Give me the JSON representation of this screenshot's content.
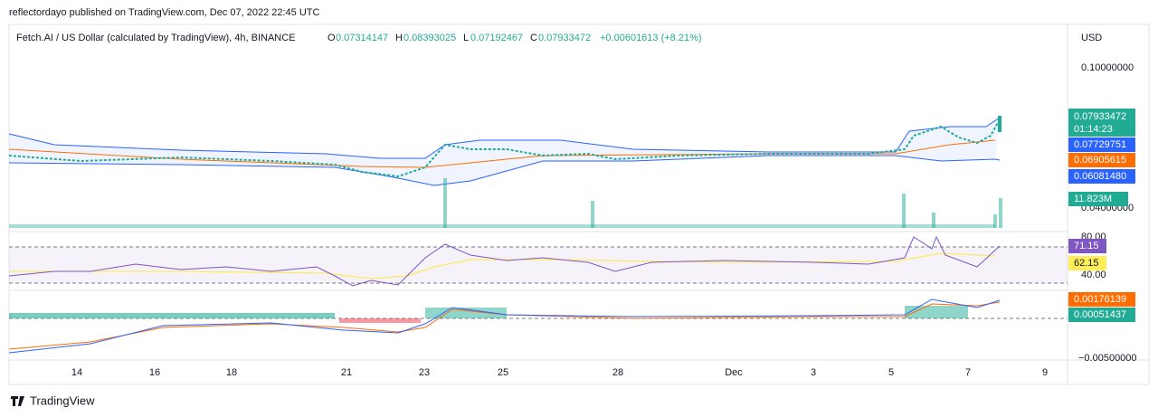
{
  "header": {
    "publisher": "reflectordayo published on TradingView.com, Dec 07, 2022 22:45 UTC"
  },
  "legend": {
    "symbol": "Fetch.AI / US Dollar (calculated by TradingView), 4h, BINANCE",
    "open_key": "O",
    "open": "0.07314147",
    "high_key": "H",
    "high": "0.08393025",
    "low_key": "L",
    "low": "0.07192467",
    "close_key": "C",
    "close": "0.07933472",
    "change": "+0.00601613 (+8.21%)"
  },
  "price_axis": {
    "currency": "USD",
    "ticks": [
      "0.10000000",
      "0.04000000"
    ],
    "last_price": "0.07933472",
    "countdown": "01:14:23",
    "bb_upper": "0.07729751",
    "bb_basis": "0.06905615",
    "bb_lower": "0.06081480",
    "volume": "11.823M"
  },
  "rsi_axis": {
    "ticks": [
      "80.00",
      "40.00"
    ],
    "rsi": "71.15",
    "rsi_ma": "62.15"
  },
  "macd_axis": {
    "macd": "0.00176139",
    "signal": "0.00051437",
    "tick": "−0.00500000"
  },
  "time_axis": [
    "14",
    "16",
    "18",
    "21",
    "23",
    "25",
    "28",
    "Dec",
    "3",
    "5",
    "7",
    "9"
  ],
  "footer": {
    "brand": "TradingView"
  }
}
